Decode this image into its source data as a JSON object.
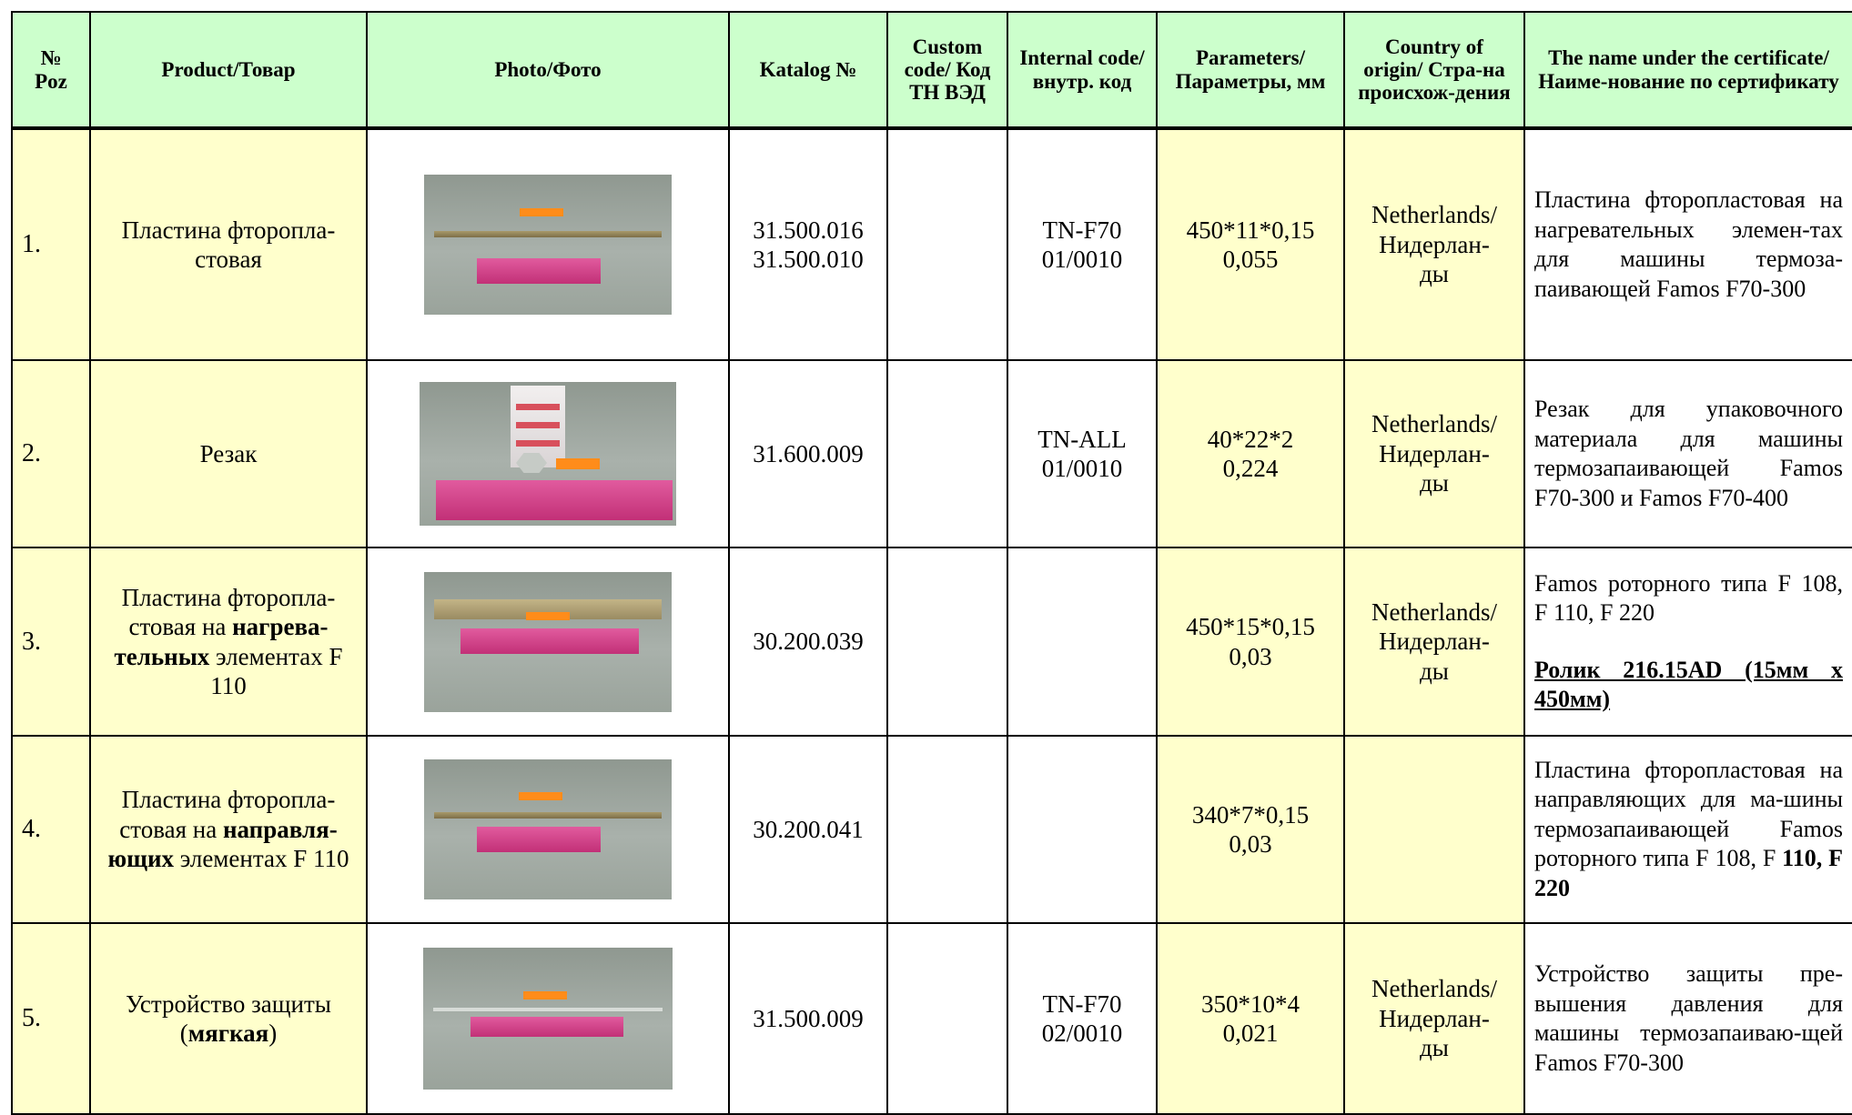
{
  "headers": {
    "poz": "№ Poz",
    "product": "Product/Товар",
    "photo": "Photo/Фото",
    "katalog": "Katalog №",
    "custom": "Custom code/ Код ТН ВЭД",
    "internal": "Internal code/ внутр. код",
    "params": "Parameters/ Параметры, мм",
    "country": "Country of origin/ Стра-на происхож-дения",
    "cert": "The name under the certificate/ Наиме-нование по сертификату"
  },
  "rows": [
    {
      "poz": "1.",
      "product": "Пластина фторопла-стовая",
      "photo_alt": "photo",
      "katalog": [
        "31.500.016",
        "31.500.010"
      ],
      "custom": "",
      "internal": [
        "TN-F70",
        "01/0010"
      ],
      "params": [
        "450*11*0,15",
        "0,055"
      ],
      "country": [
        "Netherlands/",
        "Нидерлан-",
        "ды"
      ],
      "cert": "Пластина фторопластовая на нагревательных элемен-тах для машины термоза-паивающей Famos F70-300"
    },
    {
      "poz": "2.",
      "product": "Резак",
      "katalog": [
        "31.600.009"
      ],
      "custom": "",
      "internal": [
        "TN-ALL",
        "01/0010"
      ],
      "params": [
        "40*22*2",
        "0,224"
      ],
      "country": [
        "Netherlands/",
        "Нидерлан-",
        "ды"
      ],
      "cert": "Резак для упаковочного материала для машины термозапаивающей Famos F70-300 и Famos F70-400"
    },
    {
      "poz": "3.",
      "product_parts": [
        "Пластина фторопла-стовая на ",
        "нагрева-тельных",
        " элементах F 110"
      ],
      "katalog": [
        "30.200.039"
      ],
      "custom": "",
      "internal": [],
      "params": [
        "450*15*0,15",
        "0,03"
      ],
      "country": [
        "Netherlands/",
        "Нидерлан-",
        "ды"
      ],
      "cert_parts": [
        "Famos роторного типа F 108, F 110, F 220",
        "Ролик 216.15AD (15мм х 450мм)"
      ]
    },
    {
      "poz": "4.",
      "product_parts": [
        "Пластина фторопла-стовая на ",
        "направля-ющих",
        " элементах F 110"
      ],
      "katalog": [
        "30.200.041"
      ],
      "custom": "",
      "internal": [],
      "params": [
        "340*7*0,15",
        "0,03"
      ],
      "country": [],
      "cert_parts": [
        "Пластина фторопластовая на направляющих для ма-шины термозапаивающей Famos роторного типа F 108, F ",
        "110, F 220"
      ]
    },
    {
      "poz": "5.",
      "product_parts": [
        "Устройство защиты (",
        "мягкая",
        ")"
      ],
      "katalog": [
        "31.500.009"
      ],
      "custom": "",
      "internal": [
        "TN-F70",
        "02/0010"
      ],
      "params": [
        "350*10*4",
        "0,021"
      ],
      "country": [
        "Netherlands/",
        "Нидерлан-",
        "ды"
      ],
      "cert": "Устройство защиты пре-вышения давления для машины термозапаиваю-щей Famos F70-300"
    }
  ]
}
